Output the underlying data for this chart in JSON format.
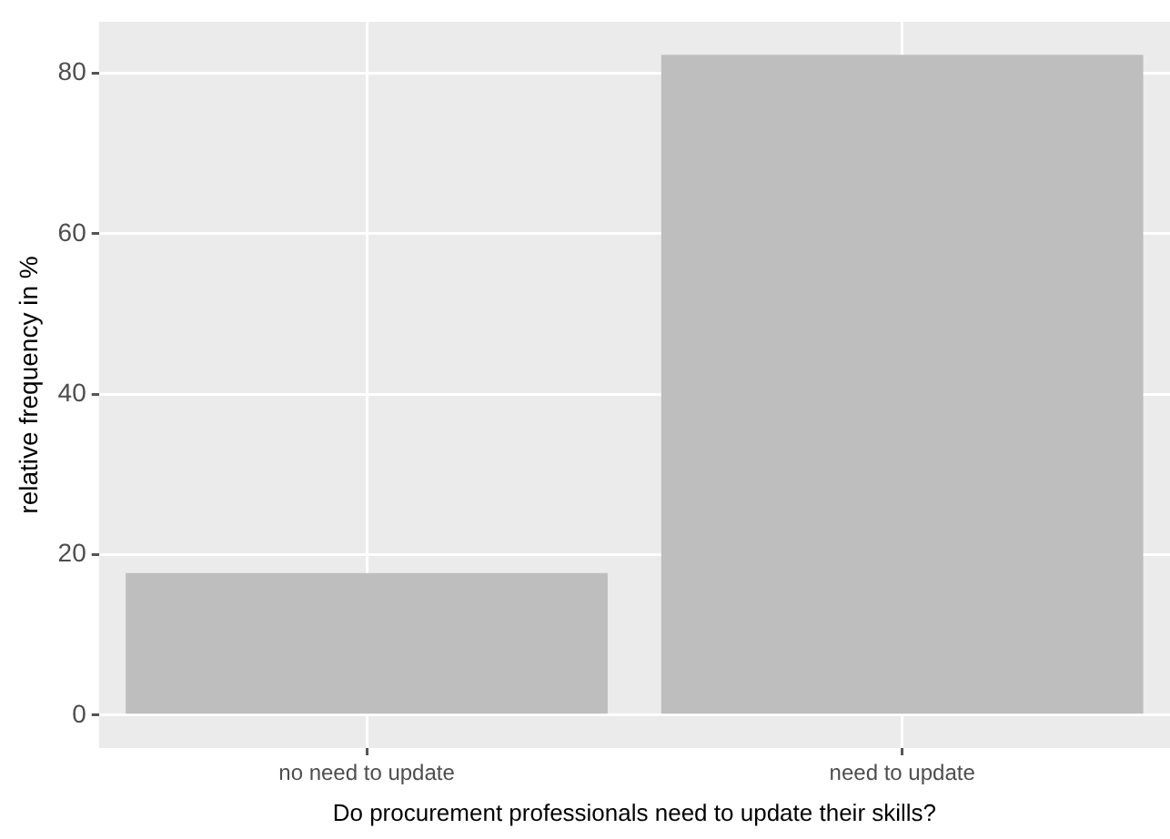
{
  "chart_data": {
    "type": "bar",
    "xlabel": "Do procurement professionals need to update their skills?",
    "ylabel": "relative frequency in %",
    "categories": [
      "no need to update",
      "need to update"
    ],
    "values": [
      17.7,
      82.3
    ],
    "color": "#bebebe",
    "ylim": [
      -4.1,
      86.4
    ],
    "yticks": [
      0,
      20,
      40,
      60,
      80
    ],
    "grid": true,
    "legend": false
  }
}
